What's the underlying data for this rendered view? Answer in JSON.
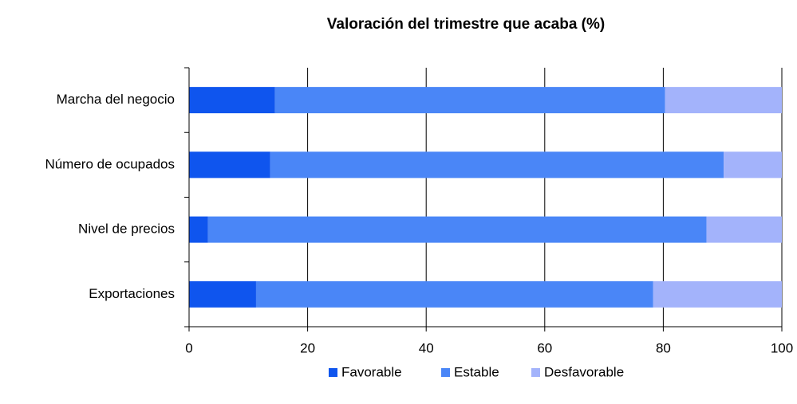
{
  "chart_data": {
    "type": "stacked-barh",
    "title": "Valoración del trimestre que acaba (%)",
    "categories": [
      "Marcha del negocio",
      "Número de ocupados",
      "Nivel de precios",
      "Exportaciones"
    ],
    "series": [
      {
        "name": "Favorable",
        "color": "#0f55ee",
        "values": [
          14.5,
          13.7,
          3.2,
          11.3
        ]
      },
      {
        "name": "Estable",
        "color": "#4a86f7",
        "values": [
          65.8,
          76.5,
          84.1,
          67.0
        ]
      },
      {
        "name": "Desfavorable",
        "color": "#a3b3fb",
        "values": [
          19.7,
          9.8,
          12.7,
          21.7
        ]
      }
    ],
    "xlim": [
      0,
      100
    ],
    "xticks": [
      0,
      20,
      40,
      60,
      80,
      100
    ],
    "grid": true,
    "legend": "bottom"
  }
}
